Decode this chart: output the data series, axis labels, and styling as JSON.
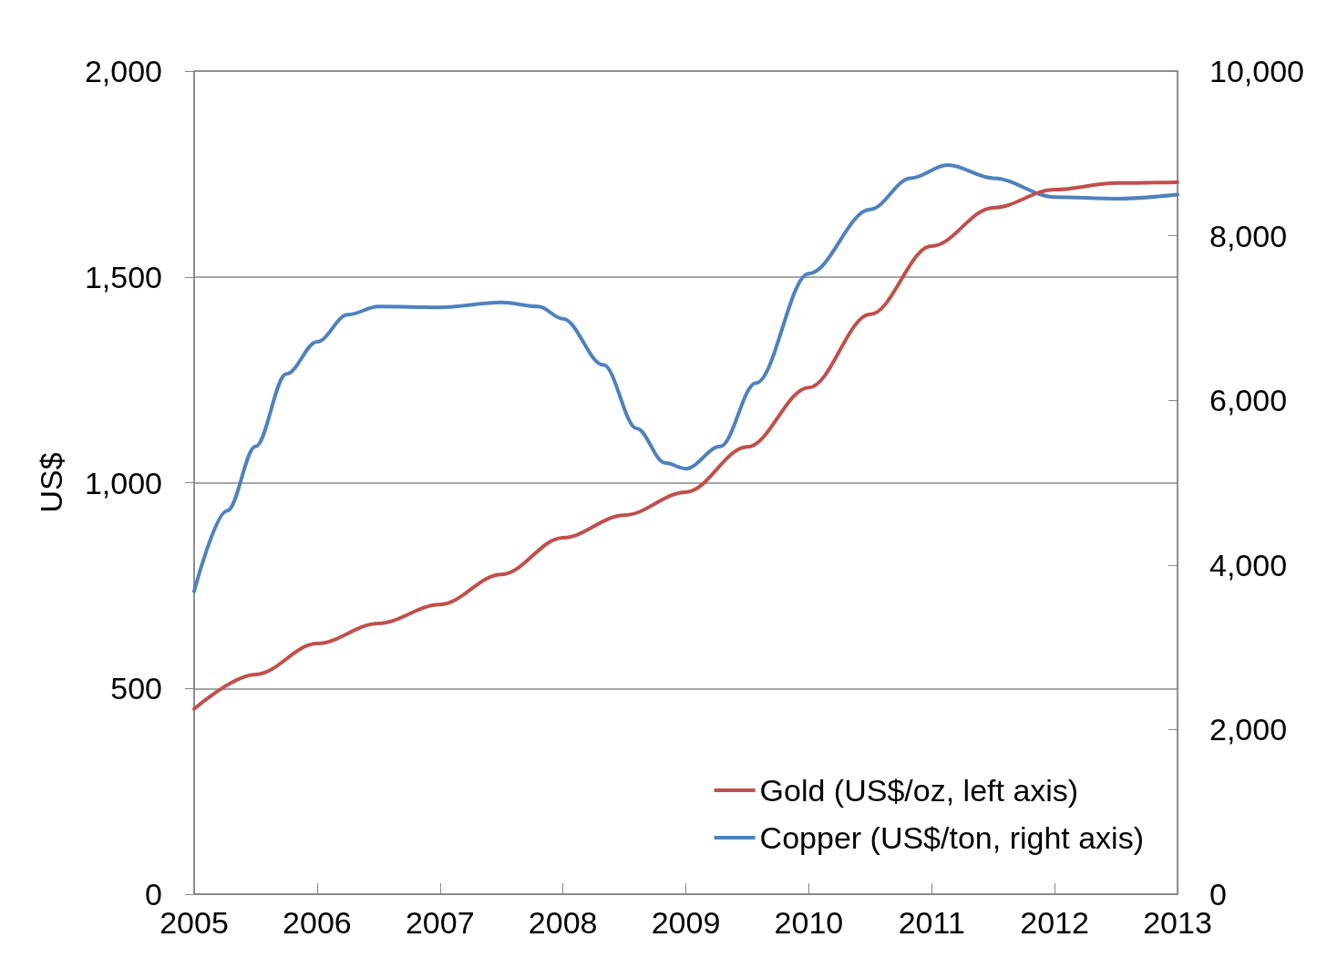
{
  "chart_data": {
    "type": "line",
    "ylabel": "US$",
    "xlim": [
      2005,
      2013
    ],
    "xticks": [
      2005,
      2006,
      2007,
      2008,
      2009,
      2010,
      2011,
      2012,
      2013
    ],
    "ylim": [
      0,
      2000
    ],
    "yticks": [
      {
        "value": 0,
        "label": "0"
      },
      {
        "value": 500,
        "label": "500"
      },
      {
        "value": 1000,
        "label": "1,000"
      },
      {
        "value": 1500,
        "label": "1,500"
      },
      {
        "value": 2000,
        "label": "2,000"
      }
    ],
    "y2lim": [
      0,
      10000
    ],
    "y2ticks": [
      {
        "value": 0,
        "label": "0"
      },
      {
        "value": 2000,
        "label": "2,000"
      },
      {
        "value": 4000,
        "label": "4,000"
      },
      {
        "value": 6000,
        "label": "6,000"
      },
      {
        "value": 8000,
        "label": "8,000"
      },
      {
        "value": 10000,
        "label": "10,000"
      }
    ],
    "grid": "y",
    "legend": "bottom right",
    "marker": "none",
    "line_style": "solid",
    "series": [
      {
        "name": "Gold (US$/oz, left axis)",
        "color": "#c0504d",
        "x": [
          2005,
          2005.5,
          2006,
          2006.5,
          2007,
          2007.5,
          2008,
          2008.5,
          2009,
          2009.5,
          2010,
          2010.5,
          2011,
          2011.5,
          2012,
          2012.5,
          2013
        ],
        "values": [
          450,
          534,
          609,
          658,
          704,
          777,
          866,
          921,
          977,
          1087,
          1231,
          1409,
          1575,
          1668,
          1712,
          1728,
          1730
        ]
      },
      {
        "name": "Copper (US$/ton, right axis)",
        "color": "#4f81bd",
        "axis": "y2",
        "x": [
          2005,
          2005.27,
          2005.5,
          2005.75,
          2006,
          2006.25,
          2006.5,
          2007,
          2007.5,
          2007.8,
          2008,
          2008.33,
          2008.6,
          2008.83,
          2009,
          2009.28,
          2009.57,
          2010,
          2010.5,
          2010.83,
          2011.13,
          2011.5,
          2012,
          2012.5,
          2013
        ],
        "values": [
          3680,
          4660,
          5440,
          6320,
          6710,
          7040,
          7140,
          7130,
          7190,
          7140,
          6990,
          6430,
          5660,
          5240,
          5170,
          5440,
          6210,
          7540,
          8320,
          8700,
          8860,
          8700,
          8470,
          8450,
          8500
        ]
      }
    ]
  }
}
